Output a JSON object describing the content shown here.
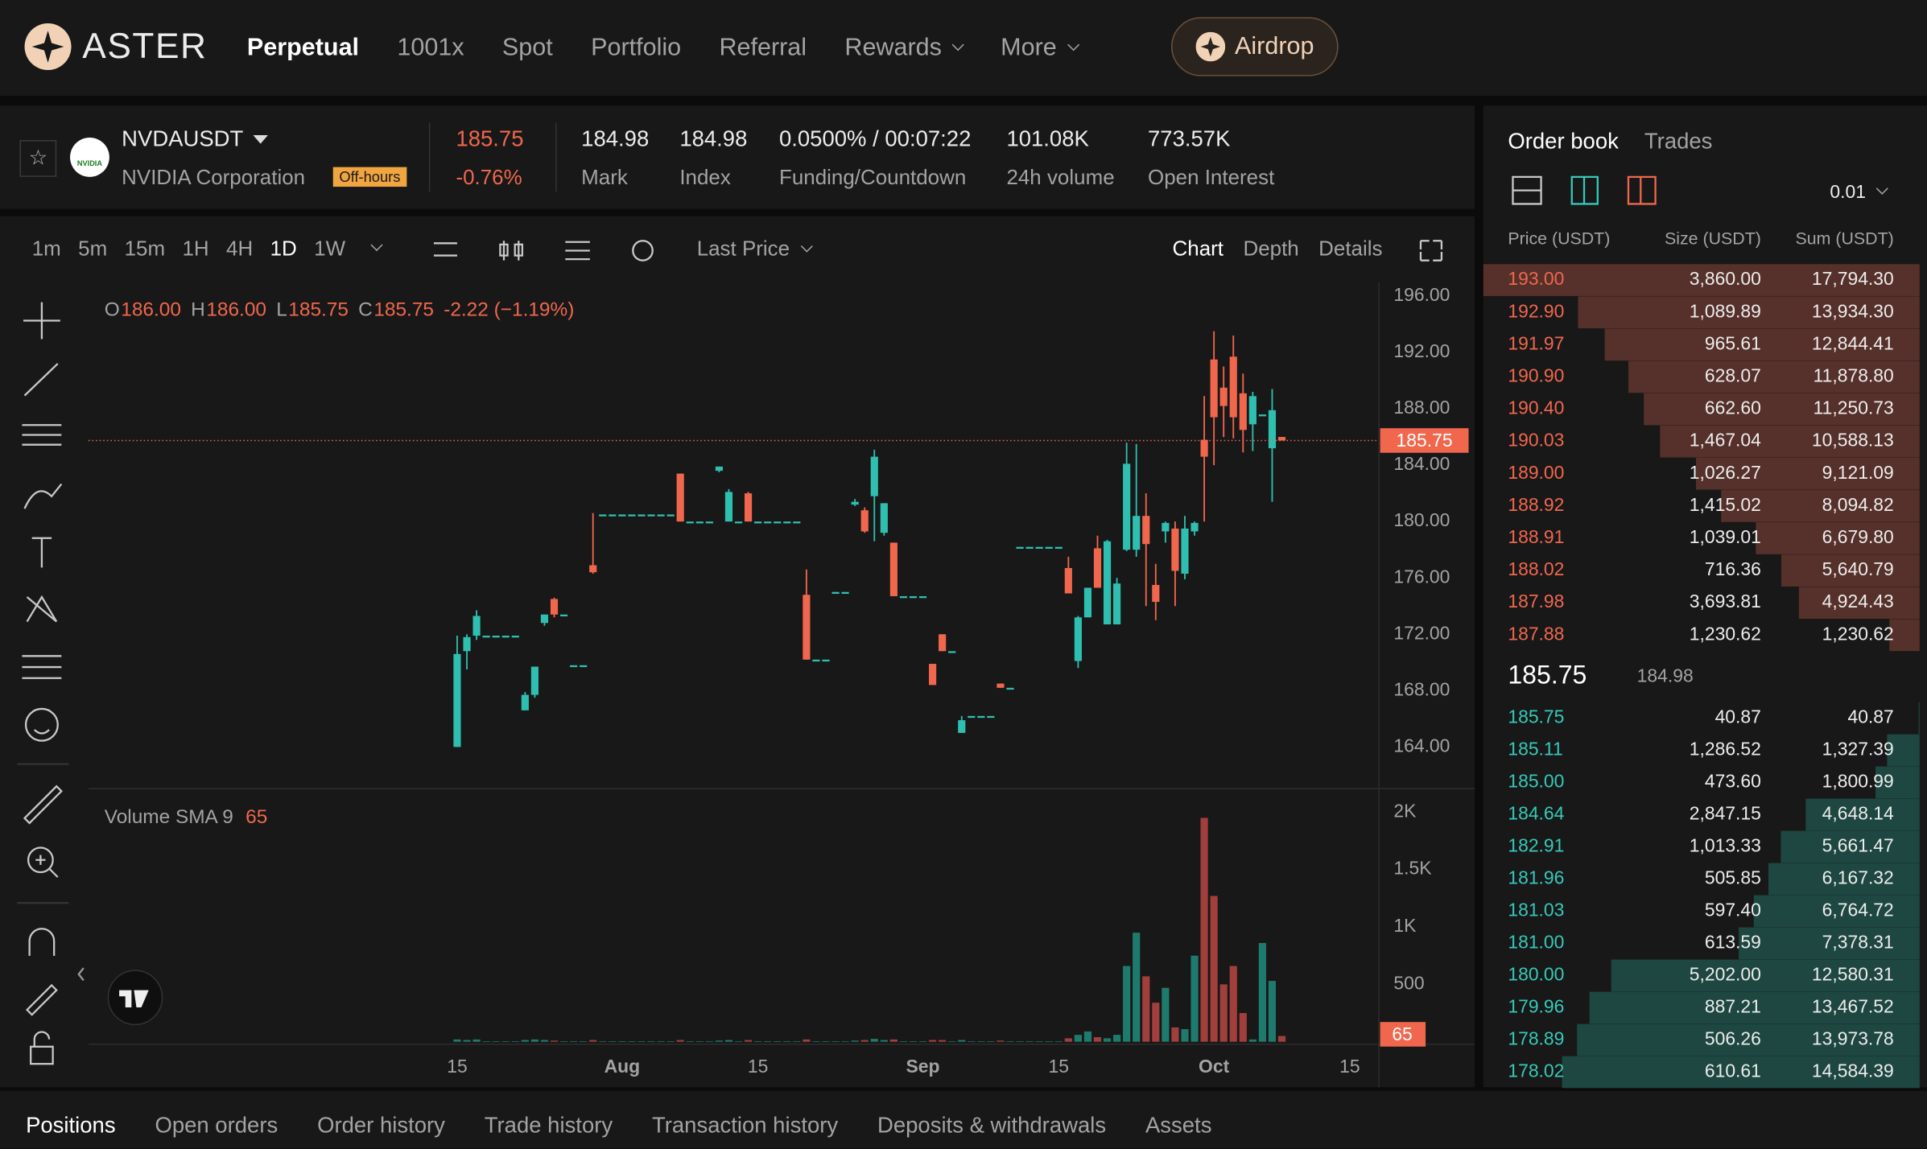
{
  "header": {
    "brand": "ASTER",
    "nav": [
      "Perpetual",
      "1001x",
      "Spot",
      "Portfolio",
      "Referral",
      "Rewards",
      "More"
    ],
    "airdrop": "Airdrop"
  },
  "ticker": {
    "symbol": "NVDAUSDT",
    "name": "NVIDIA Corporation",
    "badge": "Off-hours",
    "logo": "NVIDIA",
    "price": "185.75",
    "change": "-0.76%",
    "stats": [
      {
        "value": "184.98",
        "label": "Mark"
      },
      {
        "value": "184.98",
        "label": "Index"
      },
      {
        "value": "0.0500% / 00:07:22",
        "label": "Funding/Countdown"
      },
      {
        "value": "101.08K",
        "label": "24h volume"
      },
      {
        "value": "773.57K",
        "label": "Open Interest"
      }
    ]
  },
  "chart_toolbar": {
    "intervals": [
      "1m",
      "5m",
      "15m",
      "1H",
      "4H",
      "1D",
      "1W"
    ],
    "price_source": "Last Price",
    "views": [
      "Chart",
      "Depth",
      "Details"
    ]
  },
  "chart_data": {
    "type": "candlestick",
    "x": [
      "07-15",
      "07-16",
      "07-17",
      "07-18",
      "07-19",
      "07-20",
      "07-21",
      "07-22",
      "07-23",
      "07-24",
      "07-25",
      "07-26",
      "07-27",
      "07-28",
      "07-29",
      "07-30",
      "07-31",
      "08-01",
      "08-02",
      "08-03",
      "08-04",
      "08-05",
      "08-06",
      "08-07",
      "08-08",
      "08-09",
      "08-10",
      "08-11",
      "08-12",
      "08-13",
      "08-14",
      "08-15",
      "08-16",
      "08-17",
      "08-18",
      "08-19",
      "08-20",
      "08-21",
      "08-22",
      "08-23",
      "08-24",
      "08-25",
      "08-26",
      "08-27",
      "08-28",
      "08-29",
      "08-30",
      "08-31",
      "09-01",
      "09-02",
      "09-03",
      "09-04",
      "09-05",
      "09-06",
      "09-07",
      "09-08",
      "09-09",
      "09-10",
      "09-11",
      "09-12",
      "09-13",
      "09-14",
      "09-15",
      "09-16",
      "09-17",
      "09-18",
      "09-19",
      "09-20",
      "09-21",
      "09-22",
      "09-23",
      "09-24",
      "09-25",
      "09-26",
      "09-27",
      "09-28",
      "09-29",
      "09-30",
      "10-01",
      "10-02",
      "10-03",
      "10-04",
      "10-05",
      "10-06",
      "10-07",
      "10-08"
    ],
    "open": [
      164,
      170.8,
      171.9,
      171.9,
      171.9,
      171.9,
      171.9,
      166.6,
      167.7,
      172.8,
      174.5,
      173.4,
      169.8,
      169.8,
      176.9,
      180.5,
      180.5,
      180.5,
      180.5,
      180.5,
      180.5,
      180.5,
      180.5,
      183.4,
      180,
      180,
      180,
      183.6,
      180,
      180,
      182,
      180,
      180,
      180,
      180,
      180,
      174.8,
      170.2,
      170.2,
      175,
      175,
      181.2,
      180.8,
      181.8,
      179.2,
      178.5,
      174.7,
      174.7,
      174.7,
      169.9,
      172,
      170.8,
      165,
      166.2,
      166.2,
      166.2,
      168.5,
      168.2,
      178.2,
      178.2,
      178.2,
      178.2,
      178.2,
      176.7,
      170.1,
      173.2,
      178.1,
      172.7,
      172.7,
      178,
      178,
      180.4,
      175.5,
      179.3,
      179.5,
      176.3,
      179.3,
      185.8,
      191.5,
      189.5,
      191.7,
      189.1,
      186.9,
      187.6,
      185.2,
      186
    ],
    "high": [
      171.9,
      172,
      173.7,
      171.9,
      171.9,
      171.9,
      171.9,
      167.9,
      169.7,
      173.4,
      174.6,
      173.4,
      169.8,
      169.8,
      180.6,
      180.5,
      180.5,
      180.5,
      180.5,
      180.5,
      180.5,
      180.5,
      180.5,
      183.4,
      180,
      180,
      180,
      183.9,
      182.3,
      180,
      182.1,
      180,
      180,
      180,
      180,
      180,
      176.6,
      170.2,
      170.2,
      175,
      175,
      181.6,
      181,
      185.1,
      181.3,
      178.5,
      174.7,
      174.7,
      174.7,
      169.9,
      172,
      170.8,
      166.2,
      166.2,
      166.2,
      166.2,
      168.5,
      168.2,
      178.2,
      178.2,
      178.2,
      178.2,
      178.2,
      177.5,
      173.3,
      175.3,
      179,
      178.7,
      176,
      185.6,
      185.5,
      182,
      177,
      180,
      180,
      180.4,
      180,
      188.9,
      193.5,
      191,
      193.2,
      190.5,
      189.2,
      187.6,
      189.4,
      186
    ],
    "low": [
      164,
      169.5,
      171.6,
      171.9,
      171.9,
      171.9,
      171.9,
      166.6,
      167.5,
      172.6,
      173.2,
      173.4,
      169.8,
      169.8,
      176.3,
      180.5,
      180.5,
      180.5,
      180.5,
      180.5,
      180.5,
      180.5,
      180.5,
      180,
      180,
      180,
      180,
      183.5,
      180,
      180,
      180,
      180,
      180,
      180,
      180,
      180,
      170.2,
      170.2,
      170.2,
      175,
      175,
      181.1,
      179.2,
      178.6,
      179,
      174.7,
      174.7,
      174.7,
      174.7,
      168.4,
      170.8,
      170.8,
      165,
      166.2,
      166.2,
      166.2,
      168.2,
      168.2,
      178.2,
      178.2,
      178.2,
      178.2,
      178.2,
      174.9,
      169.6,
      173.2,
      175.3,
      172.7,
      172.7,
      177.9,
      177.5,
      174,
      173,
      178.5,
      174,
      175.9,
      179,
      180,
      184,
      186,
      185.9,
      184.9,
      185,
      187.6,
      181.4,
      185.75
    ],
    "close": [
      170.6,
      171.8,
      173.3,
      171.9,
      171.9,
      171.9,
      171.9,
      167.7,
      169.7,
      173.4,
      173.4,
      173.4,
      169.8,
      169.8,
      176.4,
      180.5,
      180.5,
      180.5,
      180.5,
      180.5,
      180.5,
      180.5,
      180.5,
      180,
      180,
      180,
      180,
      183.9,
      182.1,
      180,
      180,
      180,
      180,
      180,
      180,
      180,
      170.2,
      170.2,
      170.2,
      175,
      175,
      181.4,
      179.3,
      184.6,
      181.3,
      174.7,
      174.7,
      174.7,
      174.7,
      168.4,
      170.8,
      170.8,
      165.9,
      166.2,
      166.2,
      166.2,
      168.2,
      168.2,
      178.2,
      178.2,
      178.2,
      178.2,
      178.2,
      174.9,
      173.2,
      175.3,
      175.3,
      178.6,
      175.6,
      184.1,
      180.4,
      178.4,
      174.3,
      179.9,
      176.5,
      179.5,
      179.9,
      184.6,
      187.4,
      188.2,
      187.4,
      186.5,
      188.9,
      187.6,
      187.9,
      185.75
    ],
    "up_color": "#2fbfb0",
    "down_color": "#f0674d",
    "xlim": [
      "06-07",
      "10-18"
    ],
    "xticks": [
      {
        "value": "07-15",
        "label": "15"
      },
      {
        "value": "08-01",
        "label": "Aug"
      },
      {
        "value": "08-15",
        "label": "15"
      },
      {
        "value": "09-01",
        "label": "Sep"
      },
      {
        "value": "09-15",
        "label": "15"
      },
      {
        "value": "10-01",
        "label": "Oct"
      },
      {
        "value": "10-15",
        "label": "15"
      }
    ],
    "ylim": [
      161.04,
      196.96
    ],
    "yticks": [
      {
        "value": 196,
        "label": "196.00"
      },
      {
        "value": 192,
        "label": "192.00"
      },
      {
        "value": 188,
        "label": "188.00"
      },
      {
        "value": 184,
        "label": "184.00"
      },
      {
        "value": 180,
        "label": "180.00"
      },
      {
        "value": 176,
        "label": "176.00"
      },
      {
        "value": 172,
        "label": "172.00"
      },
      {
        "value": 168,
        "label": "168.00"
      },
      {
        "value": 164,
        "label": "164.00"
      }
    ],
    "last_price": 185.75,
    "ohlc_legend": [
      {
        "label": "O",
        "value": "186.00"
      },
      {
        "label": "H",
        "value": "186.00"
      },
      {
        "label": "L",
        "value": "185.75"
      },
      {
        "label": "C",
        "value": "185.75"
      }
    ],
    "change": "-2.22 (−1.19%)",
    "volume": {
      "title": "Volume SMA 9",
      "sma": 65,
      "up_color": "#1f7a6e",
      "down_color": "#a13f3c",
      "values": [
        20,
        15,
        20,
        5,
        5,
        5,
        5,
        15,
        20,
        15,
        10,
        5,
        5,
        5,
        15,
        5,
        5,
        5,
        5,
        5,
        5,
        5,
        5,
        15,
        5,
        5,
        5,
        10,
        15,
        5,
        15,
        5,
        5,
        5,
        5,
        5,
        20,
        5,
        5,
        5,
        5,
        10,
        15,
        25,
        15,
        20,
        5,
        5,
        5,
        15,
        15,
        5,
        15,
        5,
        5,
        5,
        10,
        5,
        5,
        5,
        5,
        5,
        5,
        30,
        60,
        90,
        40,
        30,
        60,
        660,
        950,
        570,
        340,
        470,
        125,
        110,
        750,
        1950,
        1270,
        500,
        660,
        250,
        20,
        860,
        530,
        50
      ],
      "ylim": [
        0,
        2140
      ],
      "yticks": [
        {
          "value": 2000,
          "label": "2K"
        },
        {
          "value": 1500,
          "label": "1.5K"
        },
        {
          "value": 1000,
          "label": "1K"
        },
        500
      ]
    }
  },
  "order_book": {
    "tabs": [
      "Order book",
      "Trades"
    ],
    "precision": "0.01",
    "columns": [
      "Price (USDT)",
      "Size (USDT)",
      "Sum (USDT)"
    ],
    "asks": [
      [
        "193.00",
        "3,860.00",
        "17,794.30"
      ],
      [
        "192.90",
        "1,089.89",
        "13,934.30"
      ],
      [
        "191.97",
        "965.61",
        "12,844.41"
      ],
      [
        "190.90",
        "628.07",
        "11,878.80"
      ],
      [
        "190.40",
        "662.60",
        "11,250.73"
      ],
      [
        "190.03",
        "1,467.04",
        "10,588.13"
      ],
      [
        "189.00",
        "1,026.27",
        "9,121.09"
      ],
      [
        "188.92",
        "1,415.02",
        "8,094.82"
      ],
      [
        "188.91",
        "1,039.01",
        "6,679.80"
      ],
      [
        "188.02",
        "716.36",
        "5,640.79"
      ],
      [
        "187.98",
        "3,693.81",
        "4,924.43"
      ],
      [
        "187.88",
        "1,230.62",
        "1,230.62"
      ]
    ],
    "last_price": "185.75",
    "mark_price": "184.98",
    "bids": [
      [
        "185.75",
        "40.87",
        "40.87"
      ],
      [
        "185.11",
        "1,286.52",
        "1,327.39"
      ],
      [
        "185.00",
        "473.60",
        "1,800.99"
      ],
      [
        "184.64",
        "2,847.15",
        "4,648.14"
      ],
      [
        "182.91",
        "1,013.33",
        "5,661.47"
      ],
      [
        "181.96",
        "505.85",
        "6,167.32"
      ],
      [
        "181.03",
        "597.40",
        "6,764.72"
      ],
      [
        "181.00",
        "613.59",
        "7,378.31"
      ],
      [
        "180.00",
        "5,202.00",
        "12,580.31"
      ],
      [
        "179.96",
        "887.21",
        "13,467.52"
      ],
      [
        "178.89",
        "506.26",
        "13,973.78"
      ],
      [
        "178.02",
        "610.61",
        "14,584.39"
      ]
    ]
  },
  "bottom_tabs": [
    "Positions",
    "Open orders",
    "Order history",
    "Trade history",
    "Transaction history",
    "Deposits & withdrawals",
    "Assets"
  ]
}
